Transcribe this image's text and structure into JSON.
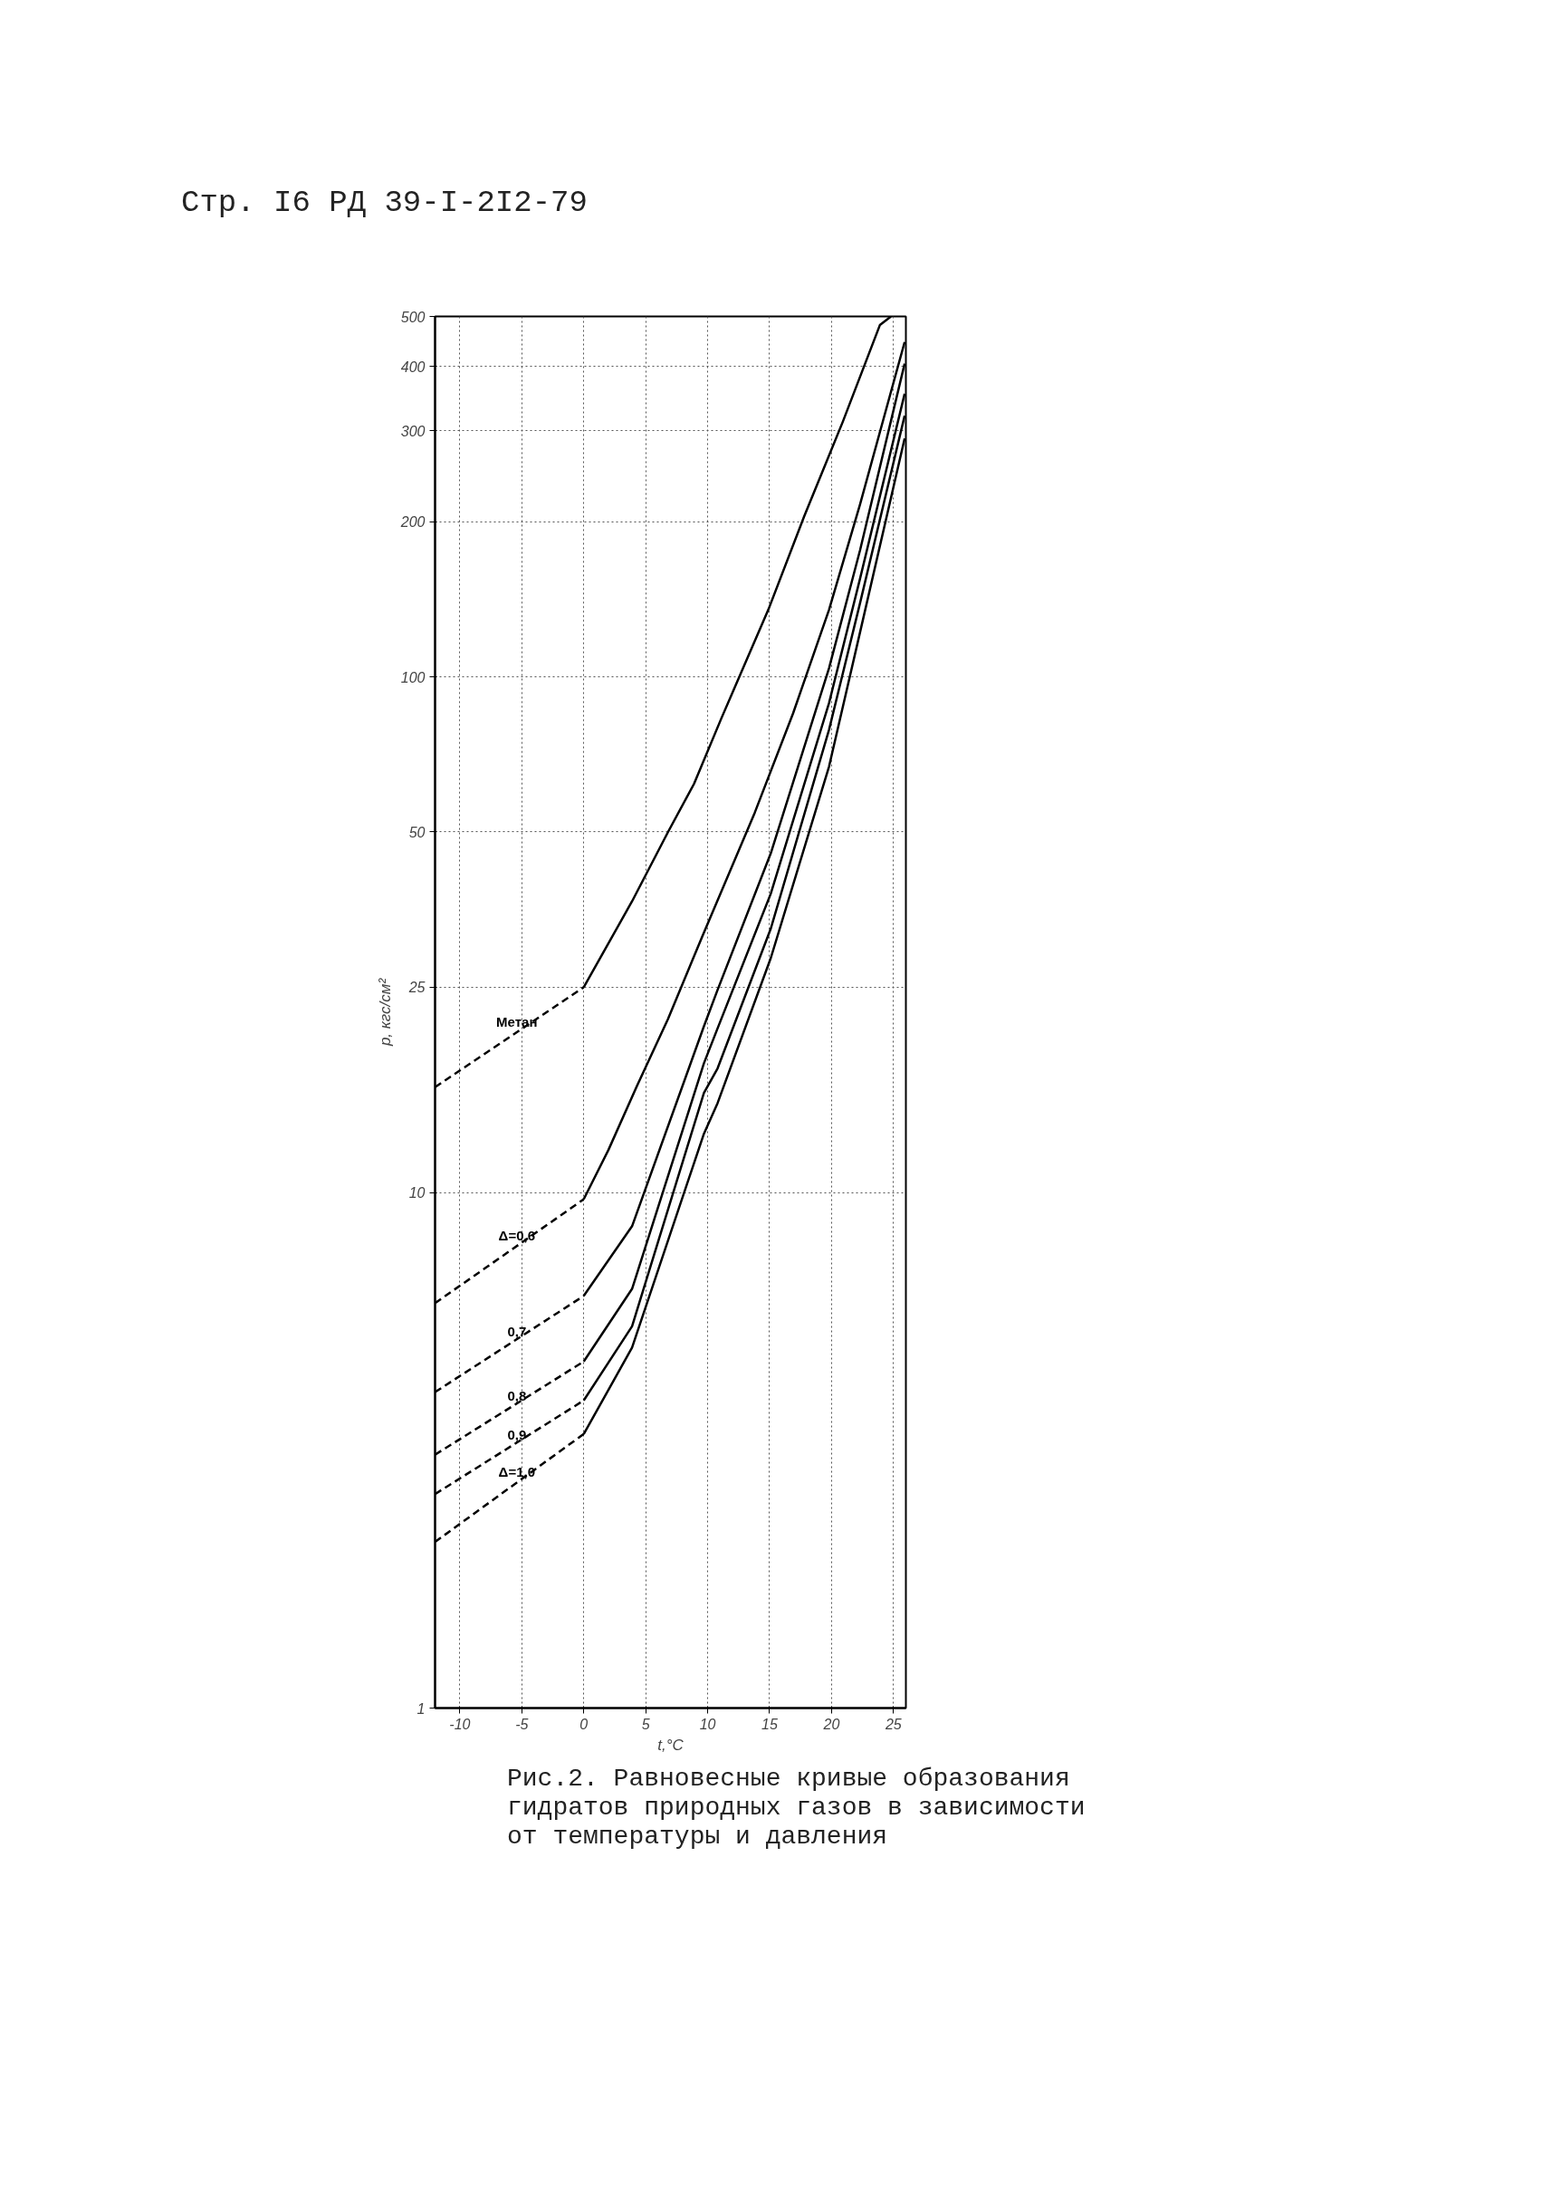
{
  "chart_data": {
    "type": "line",
    "title": "Рис.2. Равновесные кривые образования гидратов природных газов в зависимости от температуры и давления",
    "xlabel": "t,°C",
    "ylabel": "p, кгс/см²",
    "annotations": [
      "Стр. I6 РД 39-I-2I2-79"
    ],
    "log": "y",
    "grid": true,
    "legend": false,
    "marker": "none",
    "xlim": [
      -12,
      26
    ],
    "xticks": [
      -10,
      -5,
      0,
      5,
      10,
      15,
      20,
      25
    ],
    "ylim": [
      1,
      500
    ],
    "yticks": [
      1,
      10,
      25,
      50,
      100,
      200,
      300,
      400,
      500
    ],
    "series": [
      {
        "name": "Метан",
        "color": "#000000",
        "line_style": "dashed",
        "x": [
          -12,
          0
        ],
        "values": [
          16,
          25
        ]
      },
      {
        "color": "#000000",
        "line_style": "solid",
        "x": [
          0,
          3.9,
          6.8,
          8.9,
          11.1,
          14.9,
          17.8,
          20.9,
          23.9,
          24.8
        ],
        "values": [
          25,
          36.7,
          50,
          62,
          83,
          135,
          205,
          312,
          481,
          500
        ]
      },
      {
        "name": "Δ=0,6",
        "color": "#000000",
        "line_style": "dashed",
        "x": [
          -12,
          0
        ],
        "values": [
          6.1,
          9.7
        ]
      },
      {
        "color": "#000000",
        "line_style": "solid",
        "x": [
          0,
          2,
          4.3,
          6.8,
          9.6,
          13.8,
          16.9,
          19.8,
          22.3,
          25.9
        ],
        "values": [
          9.7,
          12.1,
          16.1,
          21.7,
          31.5,
          54.5,
          85,
          135,
          216,
          446
        ]
      },
      {
        "name": "0,7",
        "color": "#000000",
        "line_style": "dashed",
        "x": [
          -12,
          0
        ],
        "values": [
          4.1,
          6.3
        ]
      },
      {
        "color": "#000000",
        "line_style": "solid",
        "x": [
          0,
          3.9,
          9.7,
          10.8,
          15.1,
          19.8,
          22.3,
          25.9
        ],
        "values": [
          6.3,
          8.6,
          21,
          24.7,
          45.5,
          104,
          176,
          405
        ]
      },
      {
        "name": "0,8",
        "color": "#000000",
        "line_style": "dashed",
        "x": [
          -12,
          0
        ],
        "values": [
          3.1,
          4.7
        ]
      },
      {
        "color": "#000000",
        "line_style": "solid",
        "x": [
          0,
          3.9,
          9.7,
          10.8,
          15.1,
          19.8,
          22.3,
          25.9
        ],
        "values": [
          4.7,
          6.5,
          17.8,
          20.8,
          38,
          89,
          155,
          354
        ]
      },
      {
        "name": "0,9",
        "color": "#000000",
        "line_style": "dashed",
        "x": [
          -12,
          0
        ],
        "values": [
          2.6,
          3.95
        ]
      },
      {
        "color": "#000000",
        "line_style": "solid",
        "x": [
          0,
          3.9,
          9.7,
          10.8,
          15.1,
          19.8,
          22.3,
          25.9
        ],
        "values": [
          3.95,
          5.5,
          15.6,
          17.4,
          32.5,
          79,
          139,
          321
        ]
      },
      {
        "name": "Δ=1,0",
        "color": "#000000",
        "line_style": "dashed",
        "x": [
          -12,
          0
        ],
        "values": [
          2.1,
          3.4
        ]
      },
      {
        "color": "#000000",
        "line_style": "solid",
        "x": [
          0,
          3.9,
          9.7,
          10.8,
          15.1,
          19.8,
          22.3,
          25.9
        ],
        "values": [
          3.4,
          5.0,
          13,
          14.9,
          28.5,
          67,
          122,
          290
        ]
      }
    ]
  }
}
